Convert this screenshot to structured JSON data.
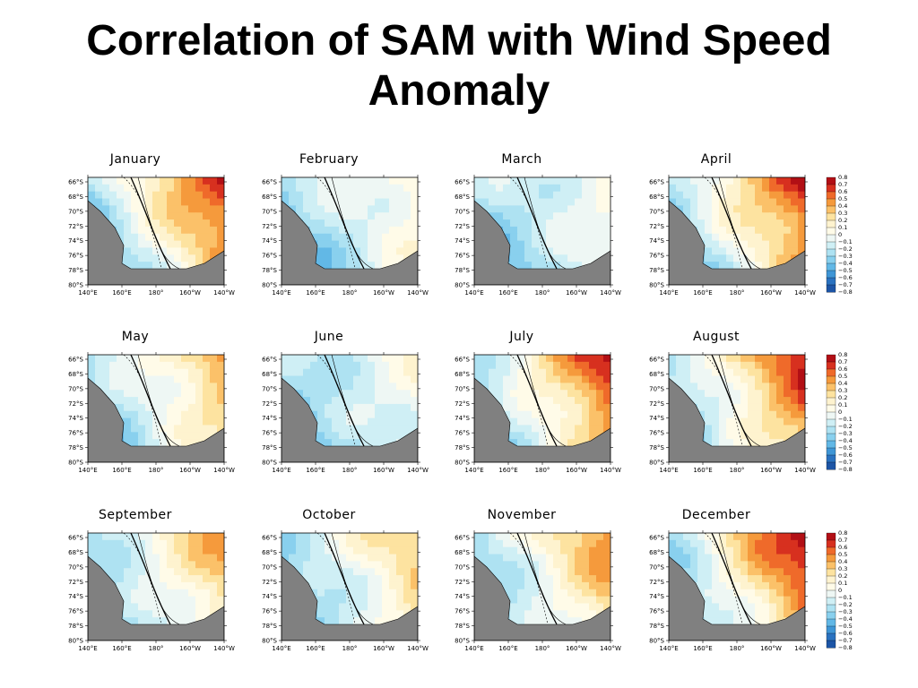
{
  "page": {
    "title": "Correlation of SAM with Wind Speed Anomaly"
  },
  "chart_data": {
    "type": "heatmap",
    "panels": [
      "January",
      "February",
      "March",
      "April",
      "May",
      "June",
      "July",
      "August",
      "September",
      "October",
      "November",
      "December"
    ],
    "x_ticks": [
      "140°E",
      "160°E",
      "180°",
      "160°W",
      "140°W"
    ],
    "y_ticks": [
      "66°S",
      "68°S",
      "70°S",
      "72°S",
      "74°S",
      "76°S",
      "78°S",
      "80°S"
    ],
    "colorbar": {
      "labels": [
        "0.8",
        "0.7",
        "0.6",
        "0.5",
        "0.4",
        "0.3",
        "0.2",
        "0.1",
        "0",
        "−0.1",
        "−0.2",
        "−0.3",
        "−0.4",
        "−0.5",
        "−0.6",
        "−0.7",
        "−0.8"
      ],
      "colors": [
        "#b20f15",
        "#d7301f",
        "#ef6a2a",
        "#f59a3c",
        "#fbc169",
        "#fde3a0",
        "#fef3cf",
        "#fffbe8",
        "#eef7f4",
        "#cfeff5",
        "#aee2f2",
        "#89d0ee",
        "#62b8e6",
        "#3f96d6",
        "#2a72c0",
        "#1d55a6"
      ]
    },
    "land_color": "#808080"
  }
}
